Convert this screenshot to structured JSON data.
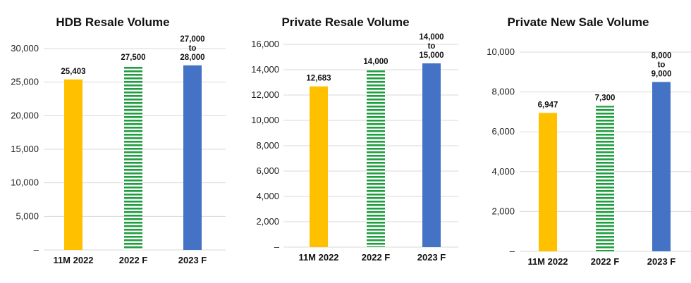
{
  "colors": {
    "actual": "#FFC000",
    "forecast_2022": "#1E9E3E",
    "forecast_2023": "#4472C4",
    "grid": "#D9D9D9"
  },
  "chart_data": [
    {
      "type": "bar",
      "title": "HDB Resale Volume",
      "categories": [
        "11M 2022",
        "2022 F",
        "2023 F"
      ],
      "values": [
        25403,
        27500,
        27500
      ],
      "data_labels": [
        "25,403",
        "27,500",
        "27,000\nto\n28,000"
      ],
      "bar_styles": [
        "solid-yellow",
        "green-stripes",
        "solid-blue"
      ],
      "yticks": [
        "–",
        "5,000",
        "10,000",
        "15,000",
        "20,000",
        "25,000",
        "30,000"
      ],
      "ylim": [
        0,
        30000
      ],
      "grid": true
    },
    {
      "type": "bar",
      "title": "Private Resale Volume",
      "categories": [
        "11M 2022",
        "2022 F",
        "2023 F"
      ],
      "values": [
        12683,
        14000,
        14500
      ],
      "data_labels": [
        "12,683",
        "14,000",
        "14,000\nto\n15,000"
      ],
      "bar_styles": [
        "solid-yellow",
        "green-stripes",
        "solid-blue"
      ],
      "yticks": [
        "–",
        "2,000",
        "4,000",
        "6,000",
        "8,000",
        "10,000",
        "12,000",
        "14,000",
        "16,000"
      ],
      "ylim": [
        0,
        16000
      ],
      "grid": true
    },
    {
      "type": "bar",
      "title": "Private New Sale Volume",
      "categories": [
        "11M 2022",
        "2022 F",
        "2023 F"
      ],
      "values": [
        6947,
        7300,
        8500
      ],
      "data_labels": [
        "6,947",
        "7,300",
        "8,000\nto\n9,000"
      ],
      "bar_styles": [
        "solid-yellow",
        "green-stripes",
        "solid-blue"
      ],
      "yticks": [
        "–",
        "2,000",
        "4,000",
        "6,000",
        "8,000",
        "10,000"
      ],
      "ylim": [
        0,
        10000
      ],
      "grid": true
    }
  ]
}
